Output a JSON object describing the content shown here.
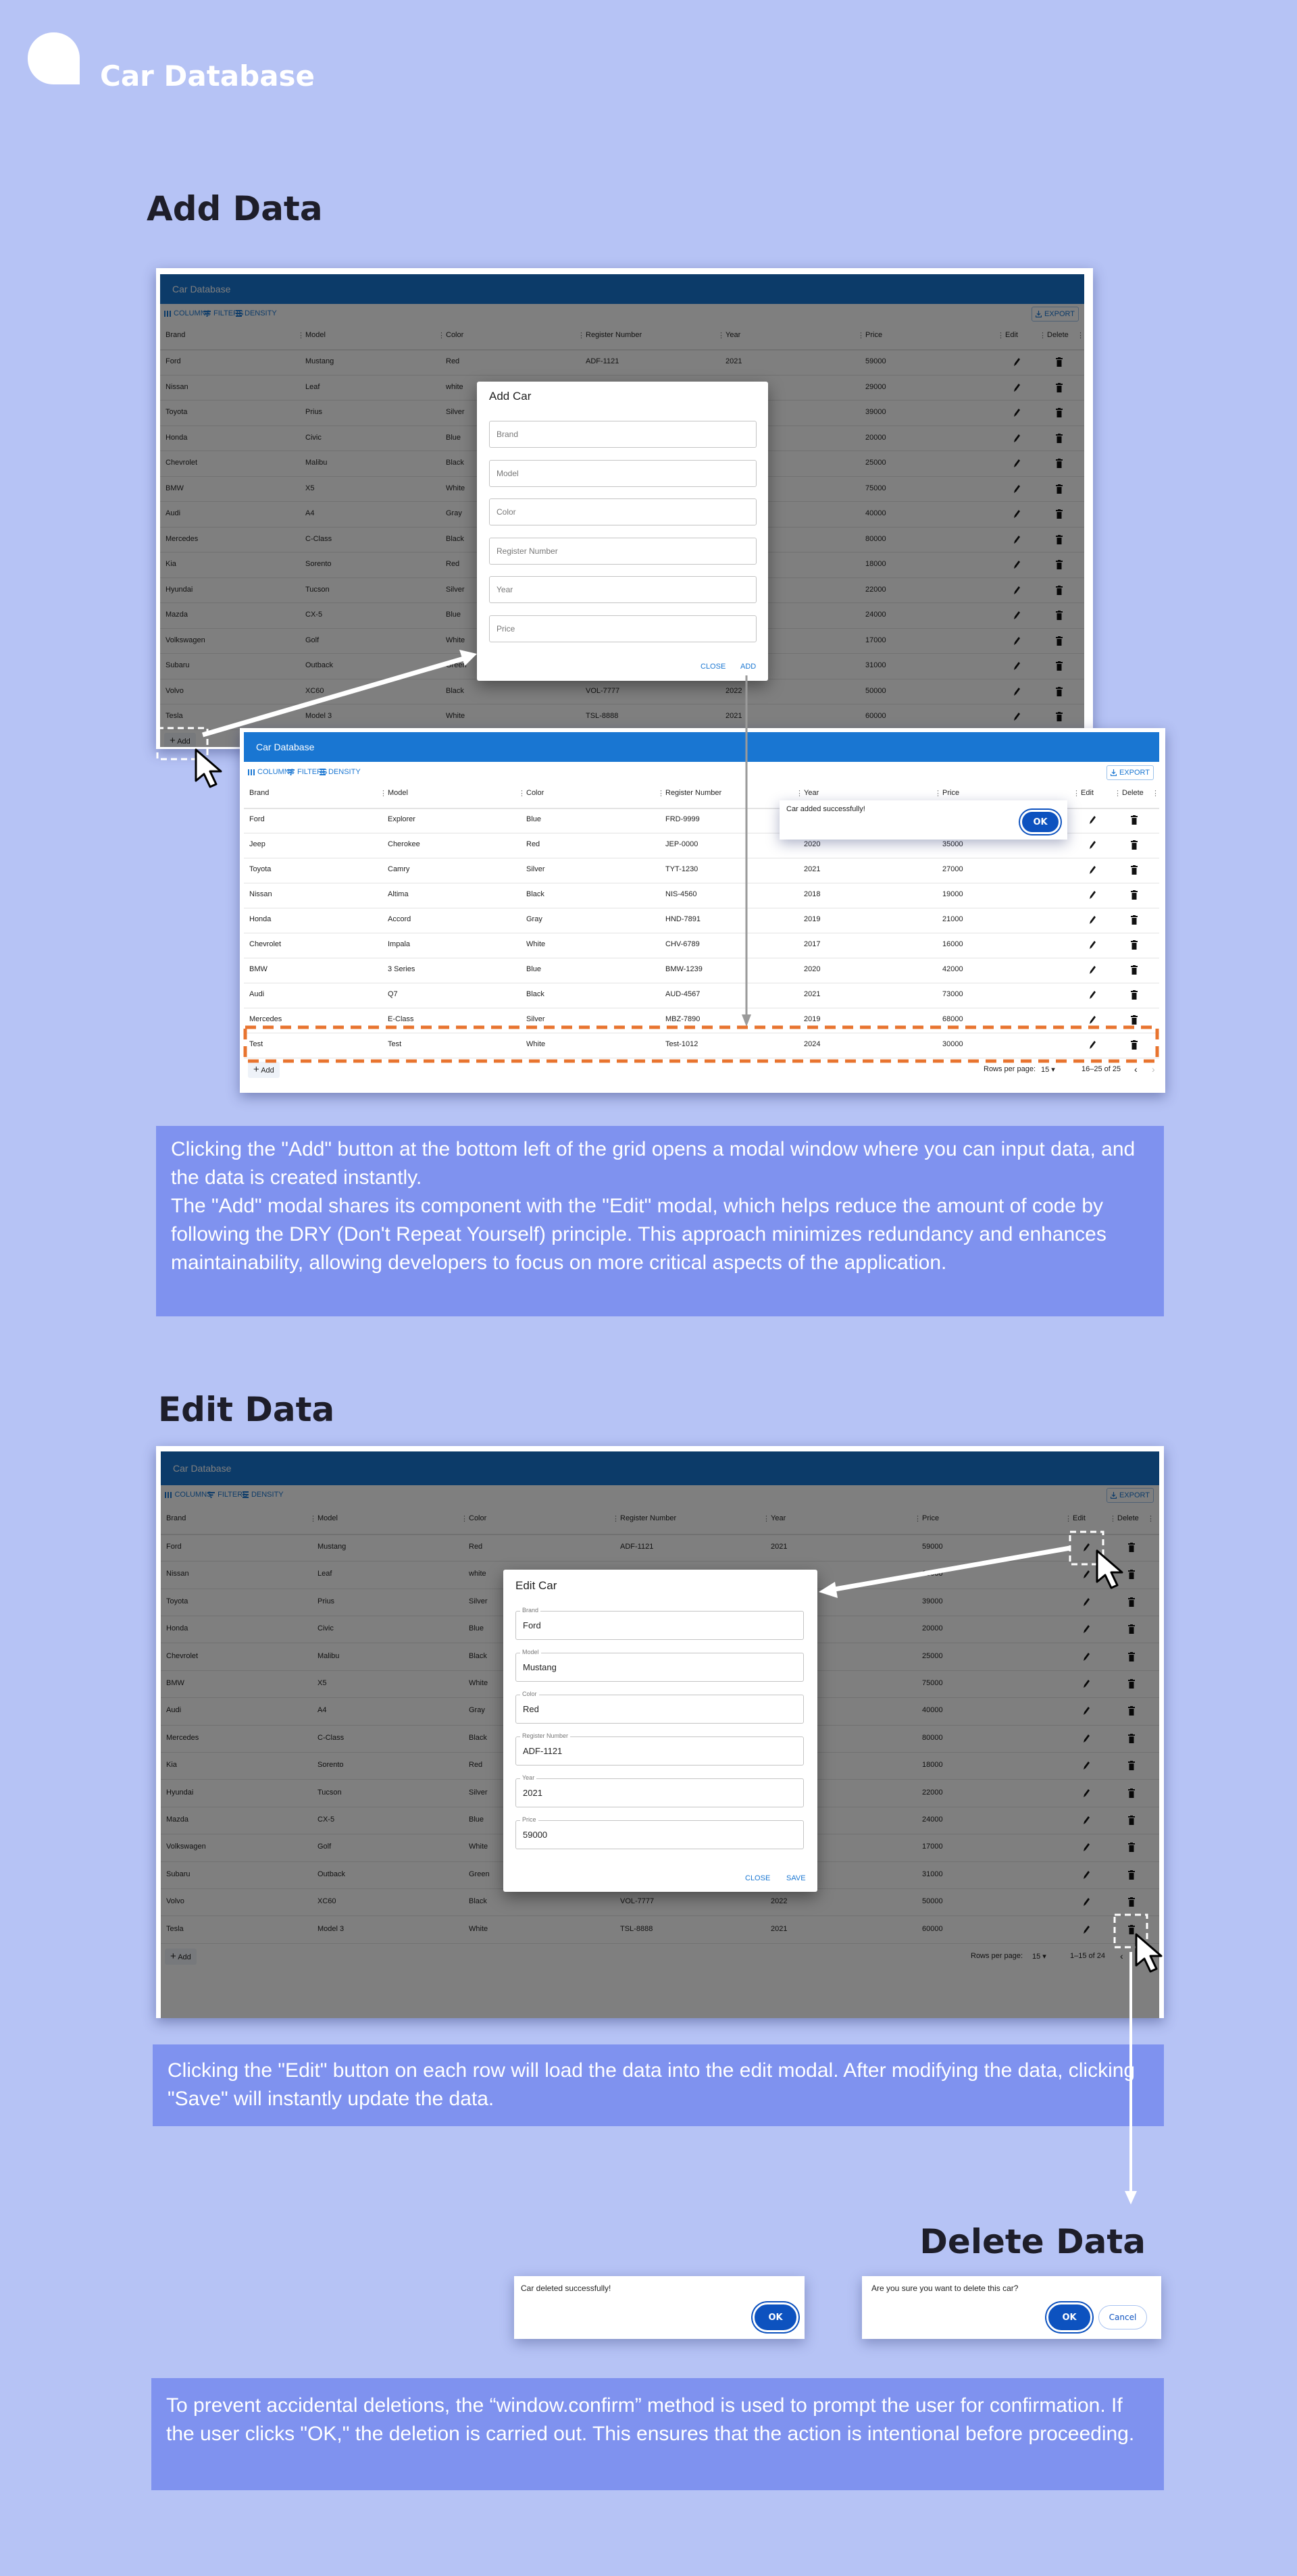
{
  "header": {
    "title": "Car Database",
    "logo": "speech-bubble-logo"
  },
  "colors": {
    "page_bg": "#b6c3f5",
    "desc_bg": "#7f92ef",
    "grid_header": "#1976d2",
    "ok_button": "#0d52bf",
    "highlight": "#e8742f"
  },
  "grid_common": {
    "title": "Car Database",
    "toolbar": [
      "COLUMNS",
      "FILTERS",
      "DENSITY"
    ],
    "export_label": "EXPORT",
    "columns": [
      "Brand",
      "Model",
      "Color",
      "Register Number",
      "Year",
      "Price",
      "Edit",
      "Delete"
    ],
    "add_label": "Add",
    "rows_per_page_label": "Rows per page:",
    "rows_per_page": "15"
  },
  "existing_cars": [
    [
      "Ford",
      "Mustang",
      "Red",
      "ADF-1121",
      "2021",
      "59000"
    ],
    [
      "Nissan",
      "Leaf",
      "white",
      "",
      "",
      "29000"
    ],
    [
      "Toyota",
      "Prius",
      "Silver",
      "",
      "",
      "39000"
    ],
    [
      "Honda",
      "Civic",
      "Blue",
      "",
      "",
      "20000"
    ],
    [
      "Chevrolet",
      "Malibu",
      "Black",
      "",
      "",
      "25000"
    ],
    [
      "BMW",
      "X5",
      "White",
      "",
      "",
      "75000"
    ],
    [
      "Audi",
      "A4",
      "Gray",
      "",
      "",
      "40000"
    ],
    [
      "Mercedes",
      "C-Class",
      "Black",
      "",
      "",
      "80000"
    ],
    [
      "Kia",
      "Sorento",
      "Red",
      "",
      "",
      "18000"
    ],
    [
      "Hyundai",
      "Tucson",
      "Silver",
      "",
      "",
      "22000"
    ],
    [
      "Mazda",
      "CX-5",
      "Blue",
      "",
      "",
      "24000"
    ],
    [
      "Volkswagen",
      "Golf",
      "White",
      "",
      "",
      "17000"
    ],
    [
      "Subaru",
      "Outback",
      "Green",
      "",
      "",
      "31000"
    ],
    [
      "Volvo",
      "XC60",
      "Black",
      "VOL-7777",
      "2022",
      "50000"
    ],
    [
      "Tesla",
      "Model 3",
      "White",
      "TSL-8888",
      "2021",
      "60000"
    ]
  ],
  "add_section": {
    "heading": "Add Data",
    "modal": {
      "title": "Add Car",
      "placeholders": [
        "Brand",
        "Model",
        "Color",
        "Register Number",
        "Year",
        "Price"
      ],
      "close": "CLOSE",
      "submit": "ADD"
    },
    "result_grid": {
      "pagination": "16–25 of 25",
      "rows": [
        [
          "Ford",
          "Explorer",
          "Blue",
          "FRD-9999",
          "",
          ""
        ],
        [
          "Jeep",
          "Cherokee",
          "Red",
          "JEP-0000",
          "2020",
          "35000"
        ],
        [
          "Toyota",
          "Camry",
          "Silver",
          "TYT-1230",
          "2021",
          "27000"
        ],
        [
          "Nissan",
          "Altima",
          "Black",
          "NIS-4560",
          "2018",
          "19000"
        ],
        [
          "Honda",
          "Accord",
          "Gray",
          "HND-7891",
          "2019",
          "21000"
        ],
        [
          "Chevrolet",
          "Impala",
          "White",
          "CHV-6789",
          "2017",
          "16000"
        ],
        [
          "BMW",
          "3 Series",
          "Blue",
          "BMW-1239",
          "2020",
          "42000"
        ],
        [
          "Audi",
          "Q7",
          "Black",
          "AUD-4567",
          "2021",
          "73000"
        ],
        [
          "Mercedes",
          "E-Class",
          "Silver",
          "MBZ-7890",
          "2019",
          "68000"
        ],
        [
          "Test",
          "Test",
          "White",
          "Test-1012",
          "2024",
          "30000"
        ]
      ]
    },
    "success_dialog": {
      "message": "Car added successfully!",
      "ok": "OK"
    },
    "description": [
      "Clicking the \"Add\" button at the bottom left of the grid opens a modal window where you can input data, and the data is created instantly.",
      "The \"Add\" modal shares its component with the \"Edit\" modal, which helps reduce the amount of code by following the DRY (Don't Repeat Yourself) principle. This approach minimizes redundancy and enhances maintainability, allowing developers to focus on more critical aspects of the application."
    ]
  },
  "edit_section": {
    "heading": "Edit Data",
    "pagination": "1–15 of 24",
    "modal": {
      "title": "Edit Car",
      "fields": [
        {
          "label": "Brand",
          "value": "Ford"
        },
        {
          "label": "Model",
          "value": "Mustang"
        },
        {
          "label": "Color",
          "value": "Red"
        },
        {
          "label": "Register Number",
          "value": "ADF-1121"
        },
        {
          "label": "Year",
          "value": "2021"
        },
        {
          "label": "Price",
          "value": "59000"
        }
      ],
      "close": "CLOSE",
      "submit": "SAVE"
    },
    "description": "Clicking the \"Edit\" button on each row will load the data into the edit modal. After modifying the data, clicking \"Save\" will instantly update the data."
  },
  "delete_section": {
    "heading": "Delete Data",
    "deleted_dialog": {
      "message": "Car deleted successfully!",
      "ok": "OK"
    },
    "confirm_dialog": {
      "message": "Are you sure you want to delete this car?",
      "ok": "OK",
      "cancel": "Cancel"
    },
    "description": "To prevent accidental deletions, the “window.confirm” method is used to prompt the user for confirmation. If the user clicks \"OK,\" the deletion is carried out. This ensures that the action is intentional before proceeding."
  }
}
